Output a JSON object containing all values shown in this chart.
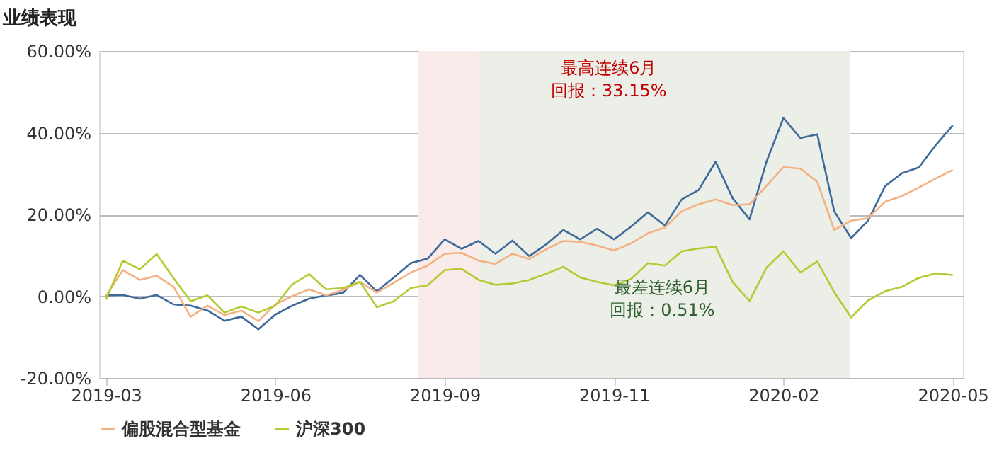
{
  "chart_data": {
    "type": "line",
    "title": "业绩表现",
    "categories": [
      "2019-03",
      null,
      null,
      null,
      null,
      null,
      null,
      null,
      null,
      null,
      "2019-06",
      null,
      null,
      null,
      null,
      null,
      null,
      null,
      null,
      null,
      "2019-09",
      null,
      null,
      null,
      null,
      null,
      null,
      null,
      null,
      null,
      "2019-11",
      null,
      null,
      null,
      null,
      null,
      null,
      null,
      null,
      null,
      "2020-02",
      null,
      null,
      null,
      null,
      null,
      null,
      null,
      null,
      null,
      "2020-05"
    ],
    "ylim": [
      -20,
      60
    ],
    "yticks": [
      {
        "value": -20,
        "label": "-20.00%"
      },
      {
        "value": 0,
        "label": "0.00%"
      },
      {
        "value": 20,
        "label": "20.00%"
      },
      {
        "value": 40,
        "label": "40.00%"
      },
      {
        "value": 60,
        "label": "60.00%"
      }
    ],
    "grid": "y",
    "legend": "bottom",
    "marker": "none",
    "line_style": "solid",
    "annotations": [
      "最高连续6月",
      "回报：33.15%",
      "最差连续6月",
      "回报：0.51%"
    ],
    "series": [
      {
        "color": "#3d6a9a",
        "values": [
          0.2,
          0.3,
          -0.6,
          0.3,
          -2.0,
          -2.3,
          -3.5,
          -6.0,
          -5.0,
          -8.1,
          -4.5,
          -2.3,
          -0.6,
          0.2,
          0.8,
          5.2,
          1.2,
          4.6,
          8.1,
          9.2,
          13.9,
          11.6,
          13.5,
          10.4,
          13.6,
          9.8,
          12.7,
          16.2,
          13.9,
          16.5,
          13.9,
          17.0,
          20.5,
          17.3,
          23.7,
          26.0,
          32.9,
          24.0,
          18.8,
          32.9,
          43.6,
          38.7,
          39.6,
          20.8,
          14.2,
          18.5,
          26.9,
          30.1,
          31.5,
          37.0,
          41.8
        ]
      },
      {
        "name": "偏股混合型基金",
        "color": "#f4b183",
        "values": [
          0,
          6.4,
          4.0,
          5.0,
          2.3,
          -5.0,
          -2.3,
          -4.6,
          -3.5,
          -6.1,
          -2.0,
          0,
          1.7,
          0.2,
          1.5,
          3.5,
          0.9,
          3.3,
          5.8,
          7.5,
          10.4,
          10.6,
          8.7,
          7.9,
          10.4,
          9.1,
          11.5,
          13.5,
          13.3,
          12.4,
          11.2,
          12.9,
          15.4,
          16.8,
          20.8,
          22.5,
          23.7,
          22.3,
          22.5,
          27.0,
          31.6,
          31.2,
          28.0,
          16.2,
          18.5,
          19.1,
          23.1,
          24.5,
          26.6,
          28.8,
          30.9
        ]
      },
      {
        "name": "沪深300",
        "color": "#b5c932",
        "values": [
          -0.8,
          8.7,
          6.6,
          10.3,
          4.4,
          -1.2,
          0.2,
          -4.0,
          -2.5,
          -4.0,
          -2.3,
          2.9,
          5.4,
          1.7,
          2.0,
          3.5,
          -2.7,
          -1.2,
          2.0,
          2.7,
          6.4,
          6.7,
          4.0,
          2.8,
          3.1,
          4.0,
          5.5,
          7.2,
          4.6,
          3.5,
          2.7,
          4.2,
          8.1,
          7.5,
          11.0,
          11.7,
          12.1,
          3.5,
          -1.2,
          7.0,
          11.0,
          5.8,
          8.5,
          1.0,
          -5.2,
          -1.0,
          1.2,
          2.3,
          4.5,
          5.6,
          5.2
        ]
      }
    ]
  }
}
